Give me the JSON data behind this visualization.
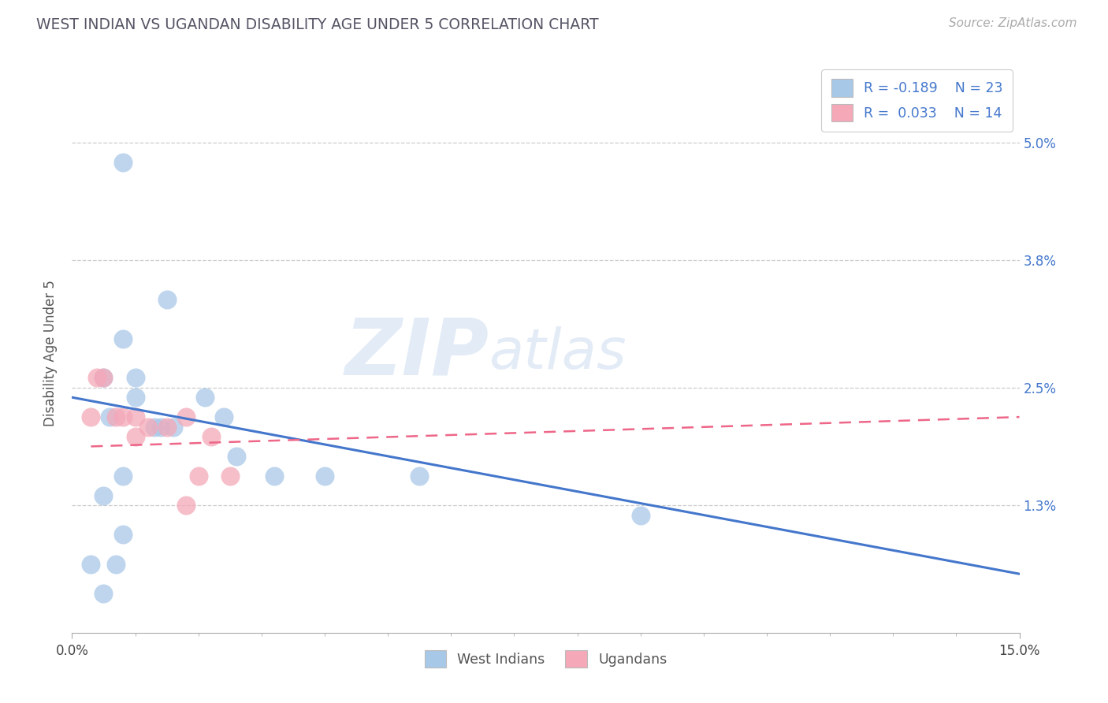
{
  "title": "WEST INDIAN VS UGANDAN DISABILITY AGE UNDER 5 CORRELATION CHART",
  "source": "Source: ZipAtlas.com",
  "ylabel": "Disability Age Under 5",
  "xmin": 0.0,
  "xmax": 0.15,
  "ymin": 0.0,
  "ymax": 0.057,
  "yticks": [
    0.013,
    0.025,
    0.038,
    0.05
  ],
  "ytick_labels": [
    "1.3%",
    "2.5%",
    "3.8%",
    "5.0%"
  ],
  "legend_r1": "R = -0.189",
  "legend_n1": "N = 23",
  "legend_r2": "R =  0.033",
  "legend_n2": "N = 14",
  "west_indian_x": [
    0.008,
    0.015,
    0.008,
    0.01,
    0.005,
    0.01,
    0.006,
    0.013,
    0.016,
    0.014,
    0.021,
    0.024,
    0.026,
    0.032,
    0.04,
    0.008,
    0.005,
    0.008,
    0.007,
    0.005,
    0.003,
    0.055,
    0.09
  ],
  "west_indian_y": [
    0.048,
    0.034,
    0.03,
    0.026,
    0.026,
    0.024,
    0.022,
    0.021,
    0.021,
    0.021,
    0.024,
    0.022,
    0.018,
    0.016,
    0.016,
    0.016,
    0.014,
    0.01,
    0.007,
    0.004,
    0.007,
    0.016,
    0.012
  ],
  "ugandan_x": [
    0.003,
    0.004,
    0.005,
    0.007,
    0.008,
    0.01,
    0.01,
    0.012,
    0.015,
    0.018,
    0.02,
    0.022,
    0.025,
    0.018
  ],
  "ugandan_y": [
    0.022,
    0.026,
    0.026,
    0.022,
    0.022,
    0.022,
    0.02,
    0.021,
    0.021,
    0.022,
    0.016,
    0.02,
    0.016,
    0.013
  ],
  "wi_color": "#a8c8e8",
  "ug_color": "#f4a8b8",
  "wi_line_color": "#4477cc",
  "ug_line_color": "#ee6688",
  "title_color": "#555577",
  "wi_trend_x": [
    0.0,
    0.15
  ],
  "wi_trend_y": [
    0.024,
    0.006
  ],
  "ug_trend_x": [
    0.003,
    0.15
  ],
  "ug_trend_y": [
    0.019,
    0.022
  ]
}
